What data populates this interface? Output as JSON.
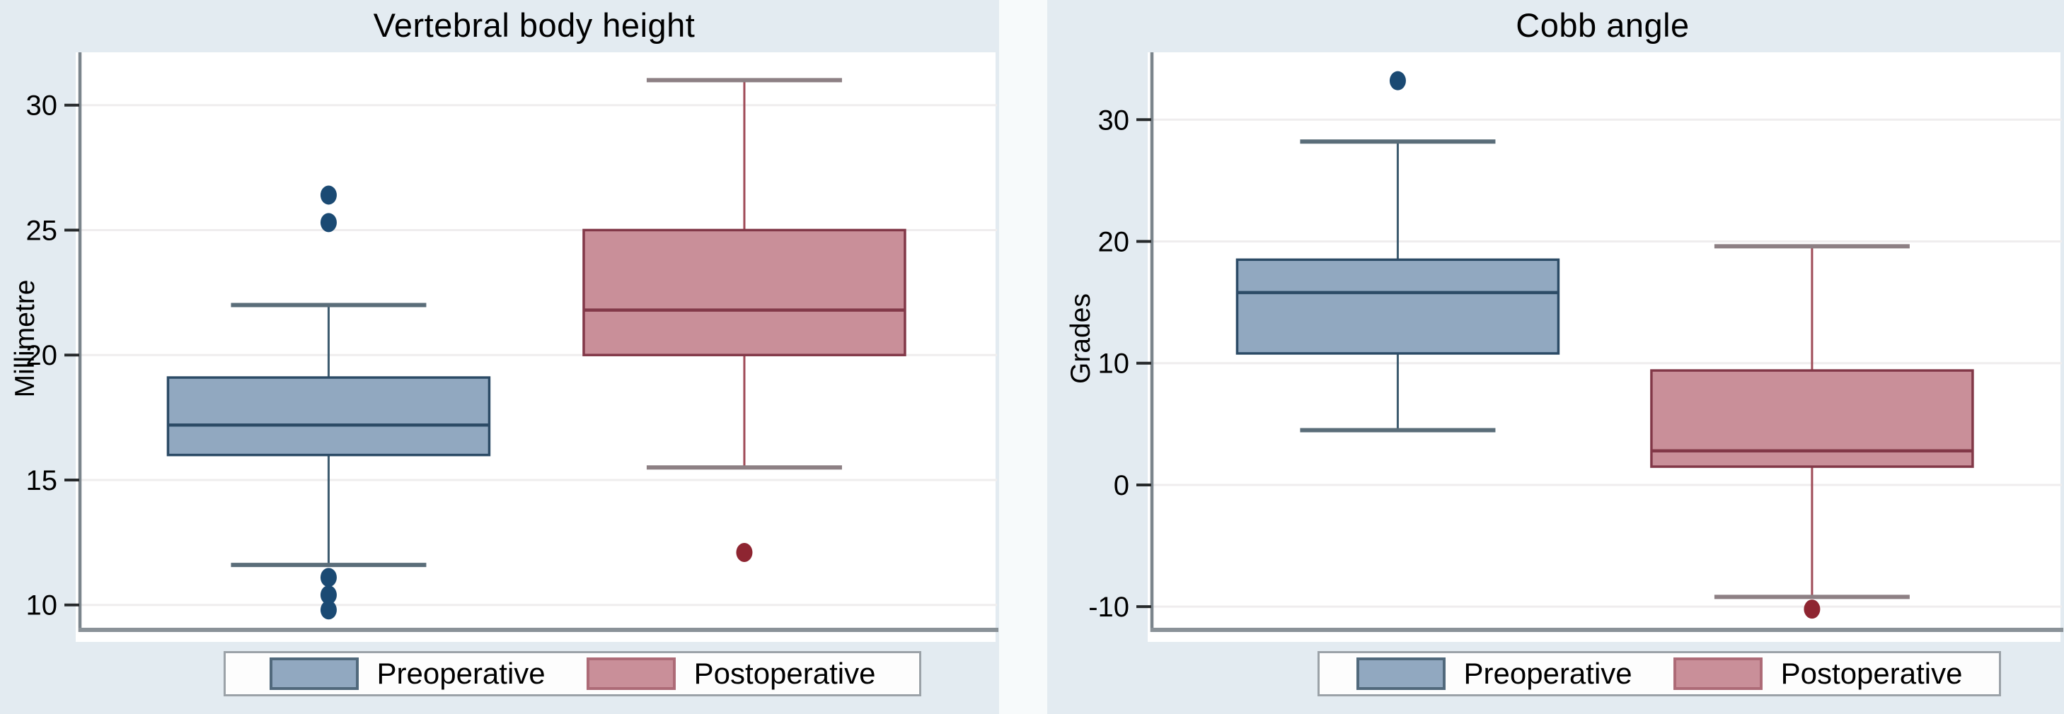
{
  "figure": {
    "background": "#e3ebf1",
    "gap_color": "#f7fafb",
    "plot_background": "#ffffff",
    "gridline_color": "#efedee",
    "axis_color": "#7b858c",
    "baseline_color": "#8a9298",
    "tick_color": "#26292b",
    "text_color": "#000000"
  },
  "chart_data": [
    {
      "type": "box",
      "title": "Vertebral body height",
      "ylabel": "Millimetre",
      "yticks": [
        10,
        15,
        20,
        25,
        30
      ],
      "ylim": [
        9.2,
        32.0
      ],
      "grid": true,
      "legend_position": "bottom",
      "series": [
        {
          "name": "Preoperative",
          "fill": "#91a8c0",
          "edge": "#2c4b66",
          "whisker": "#3c5a6e",
          "cap": "#5a6d79",
          "dot": "#1b4a73",
          "swatch_edge": "#51697c",
          "whisker_low": 11.6,
          "q1": 16.0,
          "median": 17.2,
          "q3": 19.1,
          "whisker_high": 22.0,
          "outliers": [
            26.4,
            25.3,
            11.1,
            10.4,
            9.8
          ]
        },
        {
          "name": "Postoperative",
          "fill": "#c98f99",
          "edge": "#823848",
          "whisker": "#9f4b57",
          "cap": "#8d8084",
          "dot": "#8e2531",
          "swatch_edge": "#ad6b77",
          "whisker_low": 15.5,
          "q1": 20.0,
          "median": 21.8,
          "q3": 25.0,
          "whisker_high": 31.0,
          "outliers": [
            12.1
          ]
        }
      ]
    },
    {
      "type": "box",
      "title": "Cobb angle",
      "ylabel": "Grades",
      "yticks": [
        -10,
        0,
        10,
        20,
        30
      ],
      "ylim": [
        -11.5,
        35.3
      ],
      "grid": true,
      "legend_position": "bottom",
      "series": [
        {
          "name": "Preoperative",
          "fill": "#91a8c0",
          "edge": "#2c4b66",
          "whisker": "#3c5a6e",
          "cap": "#5a6d79",
          "dot": "#1b4a73",
          "swatch_edge": "#51697c",
          "whisker_low": 4.5,
          "q1": 10.8,
          "median": 15.8,
          "q3": 18.5,
          "whisker_high": 28.2,
          "outliers": [
            33.2
          ]
        },
        {
          "name": "Postoperative",
          "fill": "#c98f99",
          "edge": "#823848",
          "whisker": "#9f4b57",
          "cap": "#8d8084",
          "dot": "#8e2531",
          "swatch_edge": "#ad6b77",
          "whisker_low": -9.2,
          "q1": 1.5,
          "median": 2.8,
          "q3": 9.4,
          "whisker_high": 19.6,
          "outliers": [
            -10.2
          ]
        }
      ]
    }
  ]
}
